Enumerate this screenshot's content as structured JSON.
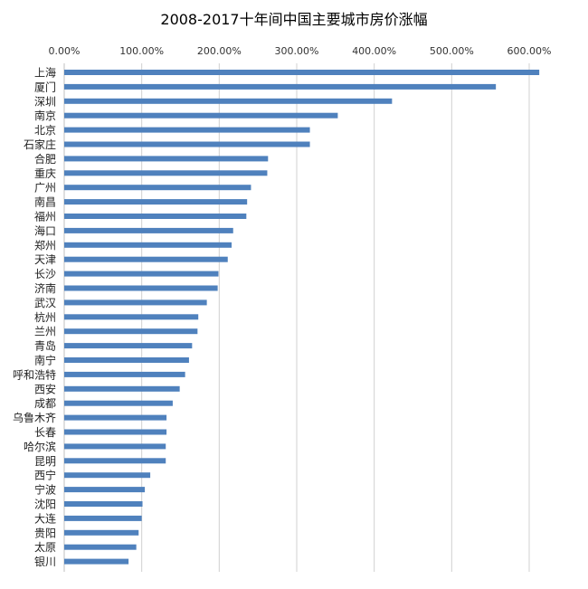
{
  "chart_data": {
    "type": "bar",
    "orientation": "horizontal",
    "title": "2008-2017十年间中国主要城市房价涨幅",
    "xlabel": "",
    "ylabel": "",
    "xlim": [
      0,
      650
    ],
    "x_ticks": [
      0,
      100,
      200,
      300,
      400,
      500,
      600
    ],
    "x_tick_labels": [
      "0.00%",
      "100.00%",
      "200.00%",
      "300.00%",
      "400.00%",
      "500.00%",
      "600.00%"
    ],
    "x_axis_position": "top",
    "grid": true,
    "legend": "none",
    "bar_color": "#4f81bd",
    "categories": [
      "上海",
      "厦门",
      "深圳",
      "南京",
      "北京",
      "石家庄",
      "合肥",
      "重庆",
      "广州",
      "南昌",
      "福州",
      "海口",
      "郑州",
      "天津",
      "长沙",
      "济南",
      "武汉",
      "杭州",
      "兰州",
      "青岛",
      "南宁",
      "呼和浩特",
      "西安",
      "成都",
      "乌鲁木齐",
      "长春",
      "哈尔滨",
      "昆明",
      "西宁",
      "宁波",
      "沈阳",
      "大连",
      "贵阳",
      "太原",
      "银川"
    ],
    "values": [
      613,
      557,
      423,
      353,
      317,
      317,
      263,
      262,
      241,
      236,
      235,
      218,
      216,
      211,
      199,
      198,
      184,
      173,
      172,
      165,
      161,
      156,
      149,
      140,
      132,
      132,
      131,
      131,
      111,
      104,
      101,
      100,
      96,
      93,
      83
    ]
  }
}
